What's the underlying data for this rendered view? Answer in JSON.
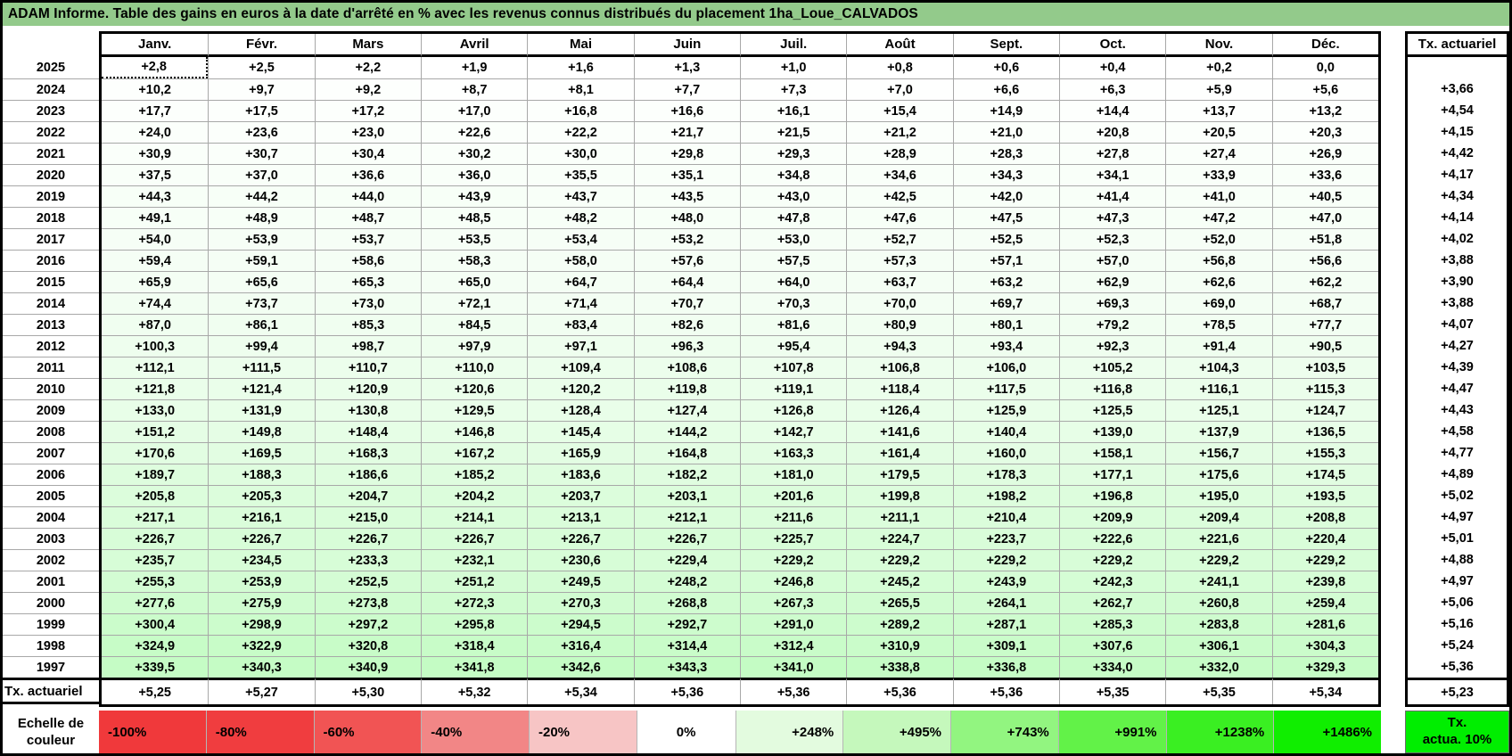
{
  "title": "ADAM Informe. Table des gains en euros à la date d'arrêté en % avec les revenus connus distribués du placement 1ha_Loue_CALVADOS",
  "colors": {
    "title_bg": "#93ca8b",
    "grid_line": "#a8a8a8",
    "gain_green_max": "#00f000",
    "frame_border": "#000000"
  },
  "table": {
    "month_headers": [
      "Janv.",
      "Févr.",
      "Mars",
      "Avril",
      "Mai",
      "Juin",
      "Juil.",
      "Août",
      "Sept.",
      "Oct.",
      "Nov.",
      "Déc."
    ],
    "tx_header": "Tx. actuariel",
    "gain_scale_max_percent": 1486,
    "rows": [
      {
        "year": "2025",
        "values": [
          "+2,8",
          "+2,5",
          "+2,2",
          "+1,9",
          "+1,6",
          "+1,3",
          "+1,0",
          "+0,8",
          "+0,6",
          "+0,4",
          "+0,2",
          "0,0"
        ],
        "tx": ""
      },
      {
        "year": "2024",
        "values": [
          "+10,2",
          "+9,7",
          "+9,2",
          "+8,7",
          "+8,1",
          "+7,7",
          "+7,3",
          "+7,0",
          "+6,6",
          "+6,3",
          "+5,9",
          "+5,6"
        ],
        "tx": "+3,66"
      },
      {
        "year": "2023",
        "values": [
          "+17,7",
          "+17,5",
          "+17,2",
          "+17,0",
          "+16,8",
          "+16,6",
          "+16,1",
          "+15,4",
          "+14,9",
          "+14,4",
          "+13,7",
          "+13,2"
        ],
        "tx": "+4,54"
      },
      {
        "year": "2022",
        "values": [
          "+24,0",
          "+23,6",
          "+23,0",
          "+22,6",
          "+22,2",
          "+21,7",
          "+21,5",
          "+21,2",
          "+21,0",
          "+20,8",
          "+20,5",
          "+20,3"
        ],
        "tx": "+4,15"
      },
      {
        "year": "2021",
        "values": [
          "+30,9",
          "+30,7",
          "+30,4",
          "+30,2",
          "+30,0",
          "+29,8",
          "+29,3",
          "+28,9",
          "+28,3",
          "+27,8",
          "+27,4",
          "+26,9"
        ],
        "tx": "+4,42"
      },
      {
        "year": "2020",
        "values": [
          "+37,5",
          "+37,0",
          "+36,6",
          "+36,0",
          "+35,5",
          "+35,1",
          "+34,8",
          "+34,6",
          "+34,3",
          "+34,1",
          "+33,9",
          "+33,6"
        ],
        "tx": "+4,17"
      },
      {
        "year": "2019",
        "values": [
          "+44,3",
          "+44,2",
          "+44,0",
          "+43,9",
          "+43,7",
          "+43,5",
          "+43,0",
          "+42,5",
          "+42,0",
          "+41,4",
          "+41,0",
          "+40,5"
        ],
        "tx": "+4,34"
      },
      {
        "year": "2018",
        "values": [
          "+49,1",
          "+48,9",
          "+48,7",
          "+48,5",
          "+48,2",
          "+48,0",
          "+47,8",
          "+47,6",
          "+47,5",
          "+47,3",
          "+47,2",
          "+47,0"
        ],
        "tx": "+4,14"
      },
      {
        "year": "2017",
        "values": [
          "+54,0",
          "+53,9",
          "+53,7",
          "+53,5",
          "+53,4",
          "+53,2",
          "+53,0",
          "+52,7",
          "+52,5",
          "+52,3",
          "+52,0",
          "+51,8"
        ],
        "tx": "+4,02"
      },
      {
        "year": "2016",
        "values": [
          "+59,4",
          "+59,1",
          "+58,6",
          "+58,3",
          "+58,0",
          "+57,6",
          "+57,5",
          "+57,3",
          "+57,1",
          "+57,0",
          "+56,8",
          "+56,6"
        ],
        "tx": "+3,88"
      },
      {
        "year": "2015",
        "values": [
          "+65,9",
          "+65,6",
          "+65,3",
          "+65,0",
          "+64,7",
          "+64,4",
          "+64,0",
          "+63,7",
          "+63,2",
          "+62,9",
          "+62,6",
          "+62,2"
        ],
        "tx": "+3,90"
      },
      {
        "year": "2014",
        "values": [
          "+74,4",
          "+73,7",
          "+73,0",
          "+72,1",
          "+71,4",
          "+70,7",
          "+70,3",
          "+70,0",
          "+69,7",
          "+69,3",
          "+69,0",
          "+68,7"
        ],
        "tx": "+3,88"
      },
      {
        "year": "2013",
        "values": [
          "+87,0",
          "+86,1",
          "+85,3",
          "+84,5",
          "+83,4",
          "+82,6",
          "+81,6",
          "+80,9",
          "+80,1",
          "+79,2",
          "+78,5",
          "+77,7"
        ],
        "tx": "+4,07"
      },
      {
        "year": "2012",
        "values": [
          "+100,3",
          "+99,4",
          "+98,7",
          "+97,9",
          "+97,1",
          "+96,3",
          "+95,4",
          "+94,3",
          "+93,4",
          "+92,3",
          "+91,4",
          "+90,5"
        ],
        "tx": "+4,27"
      },
      {
        "year": "2011",
        "values": [
          "+112,1",
          "+111,5",
          "+110,7",
          "+110,0",
          "+109,4",
          "+108,6",
          "+107,8",
          "+106,8",
          "+106,0",
          "+105,2",
          "+104,3",
          "+103,5"
        ],
        "tx": "+4,39"
      },
      {
        "year": "2010",
        "values": [
          "+121,8",
          "+121,4",
          "+120,9",
          "+120,6",
          "+120,2",
          "+119,8",
          "+119,1",
          "+118,4",
          "+117,5",
          "+116,8",
          "+116,1",
          "+115,3"
        ],
        "tx": "+4,47"
      },
      {
        "year": "2009",
        "values": [
          "+133,0",
          "+131,9",
          "+130,8",
          "+129,5",
          "+128,4",
          "+127,4",
          "+126,8",
          "+126,4",
          "+125,9",
          "+125,5",
          "+125,1",
          "+124,7"
        ],
        "tx": "+4,43"
      },
      {
        "year": "2008",
        "values": [
          "+151,2",
          "+149,8",
          "+148,4",
          "+146,8",
          "+145,4",
          "+144,2",
          "+142,7",
          "+141,6",
          "+140,4",
          "+139,0",
          "+137,9",
          "+136,5"
        ],
        "tx": "+4,58"
      },
      {
        "year": "2007",
        "values": [
          "+170,6",
          "+169,5",
          "+168,3",
          "+167,2",
          "+165,9",
          "+164,8",
          "+163,3",
          "+161,4",
          "+160,0",
          "+158,1",
          "+156,7",
          "+155,3"
        ],
        "tx": "+4,77"
      },
      {
        "year": "2006",
        "values": [
          "+189,7",
          "+188,3",
          "+186,6",
          "+185,2",
          "+183,6",
          "+182,2",
          "+181,0",
          "+179,5",
          "+178,3",
          "+177,1",
          "+175,6",
          "+174,5"
        ],
        "tx": "+4,89"
      },
      {
        "year": "2005",
        "values": [
          "+205,8",
          "+205,3",
          "+204,7",
          "+204,2",
          "+203,7",
          "+203,1",
          "+201,6",
          "+199,8",
          "+198,2",
          "+196,8",
          "+195,0",
          "+193,5"
        ],
        "tx": "+5,02"
      },
      {
        "year": "2004",
        "values": [
          "+217,1",
          "+216,1",
          "+215,0",
          "+214,1",
          "+213,1",
          "+212,1",
          "+211,6",
          "+211,1",
          "+210,4",
          "+209,9",
          "+209,4",
          "+208,8"
        ],
        "tx": "+4,97"
      },
      {
        "year": "2003",
        "values": [
          "+226,7",
          "+226,7",
          "+226,7",
          "+226,7",
          "+226,7",
          "+226,7",
          "+225,7",
          "+224,7",
          "+223,7",
          "+222,6",
          "+221,6",
          "+220,4"
        ],
        "tx": "+5,01"
      },
      {
        "year": "2002",
        "values": [
          "+235,7",
          "+234,5",
          "+233,3",
          "+232,1",
          "+230,6",
          "+229,4",
          "+229,2",
          "+229,2",
          "+229,2",
          "+229,2",
          "+229,2",
          "+229,2"
        ],
        "tx": "+4,88"
      },
      {
        "year": "2001",
        "values": [
          "+255,3",
          "+253,9",
          "+252,5",
          "+251,2",
          "+249,5",
          "+248,2",
          "+246,8",
          "+245,2",
          "+243,9",
          "+242,3",
          "+241,1",
          "+239,8"
        ],
        "tx": "+4,97"
      },
      {
        "year": "2000",
        "values": [
          "+277,6",
          "+275,9",
          "+273,8",
          "+272,3",
          "+270,3",
          "+268,8",
          "+267,3",
          "+265,5",
          "+264,1",
          "+262,7",
          "+260,8",
          "+259,4"
        ],
        "tx": "+5,06"
      },
      {
        "year": "1999",
        "values": [
          "+300,4",
          "+298,9",
          "+297,2",
          "+295,8",
          "+294,5",
          "+292,7",
          "+291,0",
          "+289,2",
          "+287,1",
          "+285,3",
          "+283,8",
          "+281,6"
        ],
        "tx": "+5,16"
      },
      {
        "year": "1998",
        "values": [
          "+324,9",
          "+322,9",
          "+320,8",
          "+318,4",
          "+316,4",
          "+314,4",
          "+312,4",
          "+310,9",
          "+309,1",
          "+307,6",
          "+306,1",
          "+304,3"
        ],
        "tx": "+5,24"
      },
      {
        "year": "1997",
        "values": [
          "+339,5",
          "+340,3",
          "+340,9",
          "+341,8",
          "+342,6",
          "+343,3",
          "+341,0",
          "+338,8",
          "+336,8",
          "+334,0",
          "+332,0",
          "+329,3"
        ],
        "tx": "+5,36"
      }
    ],
    "footer": {
      "label": "Tx. actuariel",
      "values": [
        "+5,25",
        "+5,27",
        "+5,30",
        "+5,32",
        "+5,34",
        "+5,36",
        "+5,36",
        "+5,36",
        "+5,36",
        "+5,35",
        "+5,35",
        "+5,34"
      ],
      "tx": "+5,23"
    }
  },
  "scale": {
    "label": "Echelle de couleur",
    "cells": [
      {
        "text": "-100%",
        "color": "#f0393b",
        "align": "left"
      },
      {
        "text": "-80%",
        "color": "#f03d3f",
        "align": "left"
      },
      {
        "text": "-60%",
        "color": "#f15454",
        "align": "left"
      },
      {
        "text": "-40%",
        "color": "#f28686",
        "align": "left"
      },
      {
        "text": "-20%",
        "color": "#f7c5c5",
        "align": "left"
      },
      {
        "text": "0%",
        "color": "#ffffff",
        "align": "center"
      },
      {
        "text": "+248%",
        "color": "#e3fbdf",
        "align": "right"
      },
      {
        "text": "+495%",
        "color": "#c5f8bc",
        "align": "right"
      },
      {
        "text": "+743%",
        "color": "#92f580",
        "align": "right"
      },
      {
        "text": "+991%",
        "color": "#62f248",
        "align": "right"
      },
      {
        "text": "+1238%",
        "color": "#3aef22",
        "align": "right"
      },
      {
        "text": "+1486%",
        "color": "#10ee00",
        "align": "right"
      }
    ],
    "tx_box": {
      "line1": "Tx.",
      "line2": "actua. 10%",
      "color": "#00ee00"
    }
  }
}
